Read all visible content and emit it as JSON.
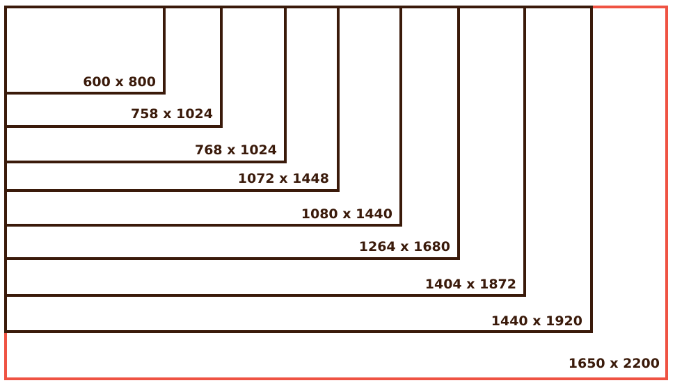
{
  "labels": [
    "600 x 800",
    "758 x 1024",
    "768 x 1024",
    "1072 x 1448",
    "1080 x 1440",
    "1264 x 1680",
    "1404 x 1872",
    "1440 x 1920",
    "1650 x 2200"
  ]
}
